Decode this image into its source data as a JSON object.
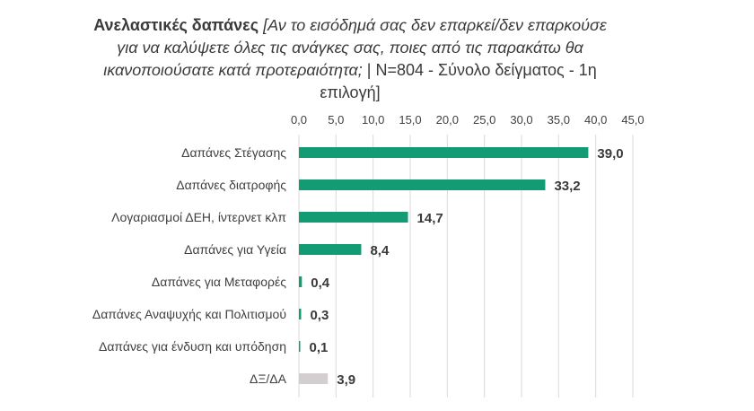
{
  "chart_data": {
    "type": "bar",
    "orientation": "horizontal",
    "title": "Ανελαστικές δαπάνες",
    "title_detail": "[Αν το εισόδημά σας δεν επαρκεί/δεν επαρκούσε για να καλύψετε όλες τις ανάγκες σας, ποιες από τις παρακάτω θα ικανοποιούσατε κατά προτεραιότητα;",
    "title_suffix": "| N=804 - Σύνολο δείγματος - 1η επιλογή]",
    "categories": [
      "Δαπάνες Στέγασης",
      "Δαπάνες διατροφής",
      "Λογαριασμοί ΔΕΗ, ίντερνετ κλπ",
      "Δαπάνες για Υγεία",
      "Δαπάνες για Μεταφορές",
      "Δαπάνες Αναψυχής και Πολιτισμού",
      "Δαπάνες για ένδυση και υπόδηση",
      "ΔΞ/ΔΑ"
    ],
    "values": [
      39.0,
      33.2,
      14.7,
      8.4,
      0.4,
      0.3,
      0.1,
      3.9
    ],
    "value_labels": [
      "39,0",
      "33,2",
      "14,7",
      "8,4",
      "0,4",
      "0,3",
      "0,1",
      "3,9"
    ],
    "bar_colors": [
      "#139b74",
      "#139b74",
      "#139b74",
      "#139b74",
      "#139b74",
      "#139b74",
      "#139b74",
      "#d3cfd1"
    ],
    "xlim": [
      0,
      45
    ],
    "x_ticks": [
      0,
      5,
      10,
      15,
      20,
      25,
      30,
      35,
      40,
      45
    ],
    "x_tick_labels": [
      "0,0",
      "5,0",
      "10,0",
      "15,0",
      "20,0",
      "25,0",
      "30,0",
      "35,0",
      "40,0",
      "45,0"
    ],
    "x_axis_position": "top",
    "grid": true,
    "xlabel": "",
    "ylabel": ""
  }
}
